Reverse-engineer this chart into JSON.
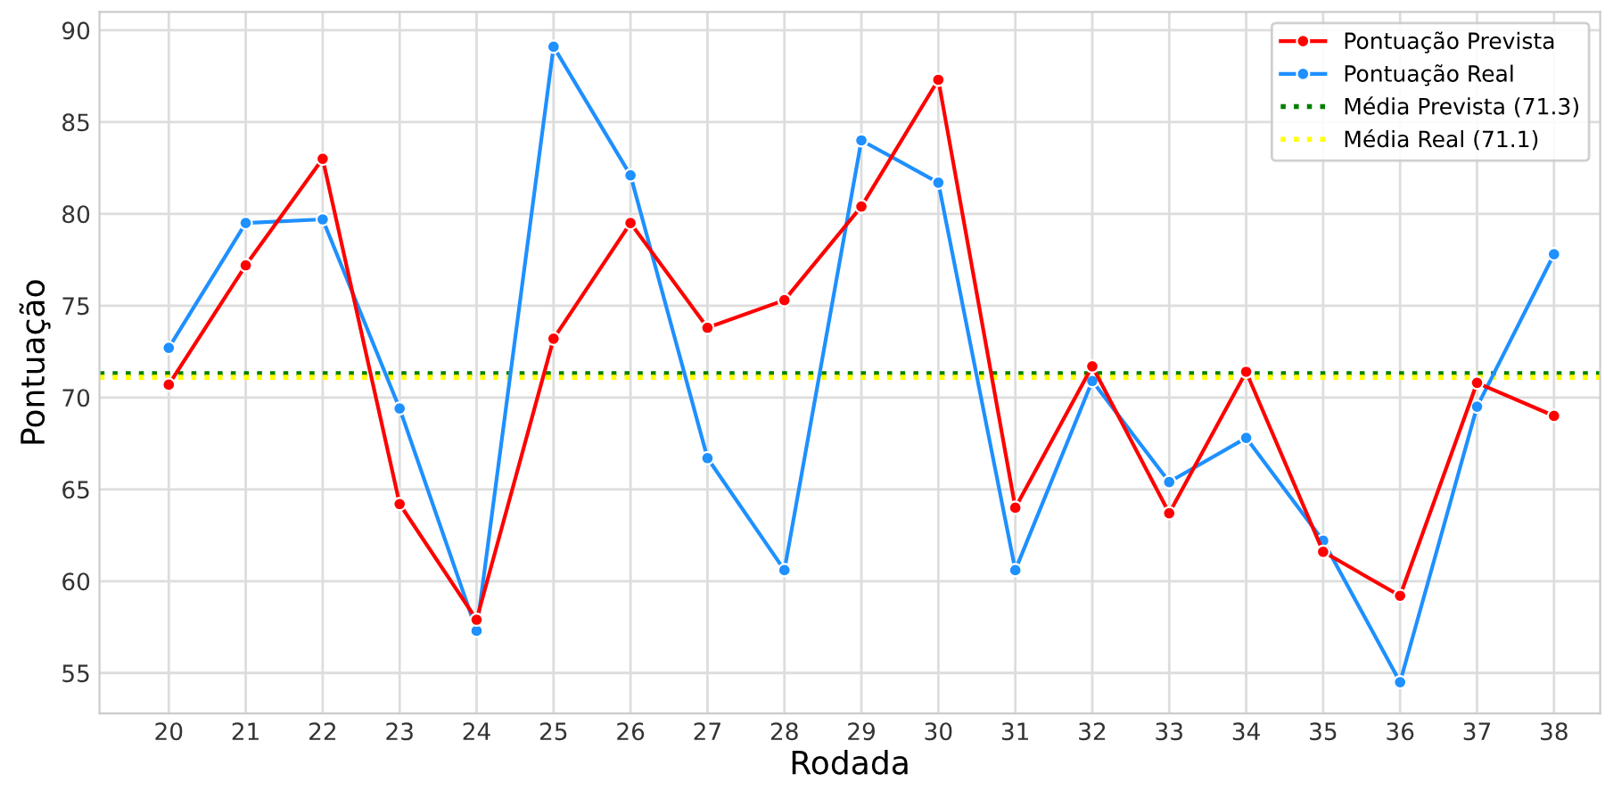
{
  "chart_data": {
    "type": "line",
    "xlabel": "Rodada",
    "ylabel": "Pontuação",
    "x": [
      20,
      21,
      22,
      23,
      24,
      25,
      26,
      27,
      28,
      29,
      30,
      31,
      32,
      33,
      34,
      35,
      36,
      37,
      38
    ],
    "series": [
      {
        "name": "Pontuação Prevista",
        "color": "#ff0000",
        "values": [
          70.7,
          77.2,
          83.0,
          64.2,
          57.9,
          73.2,
          79.5,
          73.8,
          75.3,
          80.4,
          87.3,
          64.0,
          71.7,
          63.7,
          71.4,
          61.6,
          59.2,
          70.8,
          69.0
        ]
      },
      {
        "name": "Pontuação Real",
        "color": "#1e90ff",
        "values": [
          72.7,
          79.5,
          79.7,
          69.4,
          57.3,
          89.1,
          82.1,
          66.7,
          60.6,
          84.0,
          81.7,
          60.6,
          70.9,
          65.4,
          67.8,
          62.2,
          54.5,
          69.5,
          77.8
        ]
      }
    ],
    "ref_lines": [
      {
        "axis": "y",
        "value": 71.3,
        "label": "Média Prevista (71.3)",
        "color": "#008000",
        "line_style": "dotted"
      },
      {
        "axis": "y",
        "value": 71.1,
        "label": "Média Real (71.1)",
        "color": "#ffff00",
        "line_style": "dotted"
      }
    ],
    "xlim": [
      19.1,
      38.6
    ],
    "ylim": [
      52.8,
      91
    ],
    "xticks": [
      20,
      21,
      22,
      23,
      24,
      25,
      26,
      27,
      28,
      29,
      30,
      31,
      32,
      33,
      34,
      35,
      36,
      37,
      38
    ],
    "yticks": [
      55,
      60,
      65,
      70,
      75,
      80,
      85,
      90
    ],
    "grid": true,
    "legend": "top right",
    "marker": "circle",
    "line_style": "solid"
  }
}
